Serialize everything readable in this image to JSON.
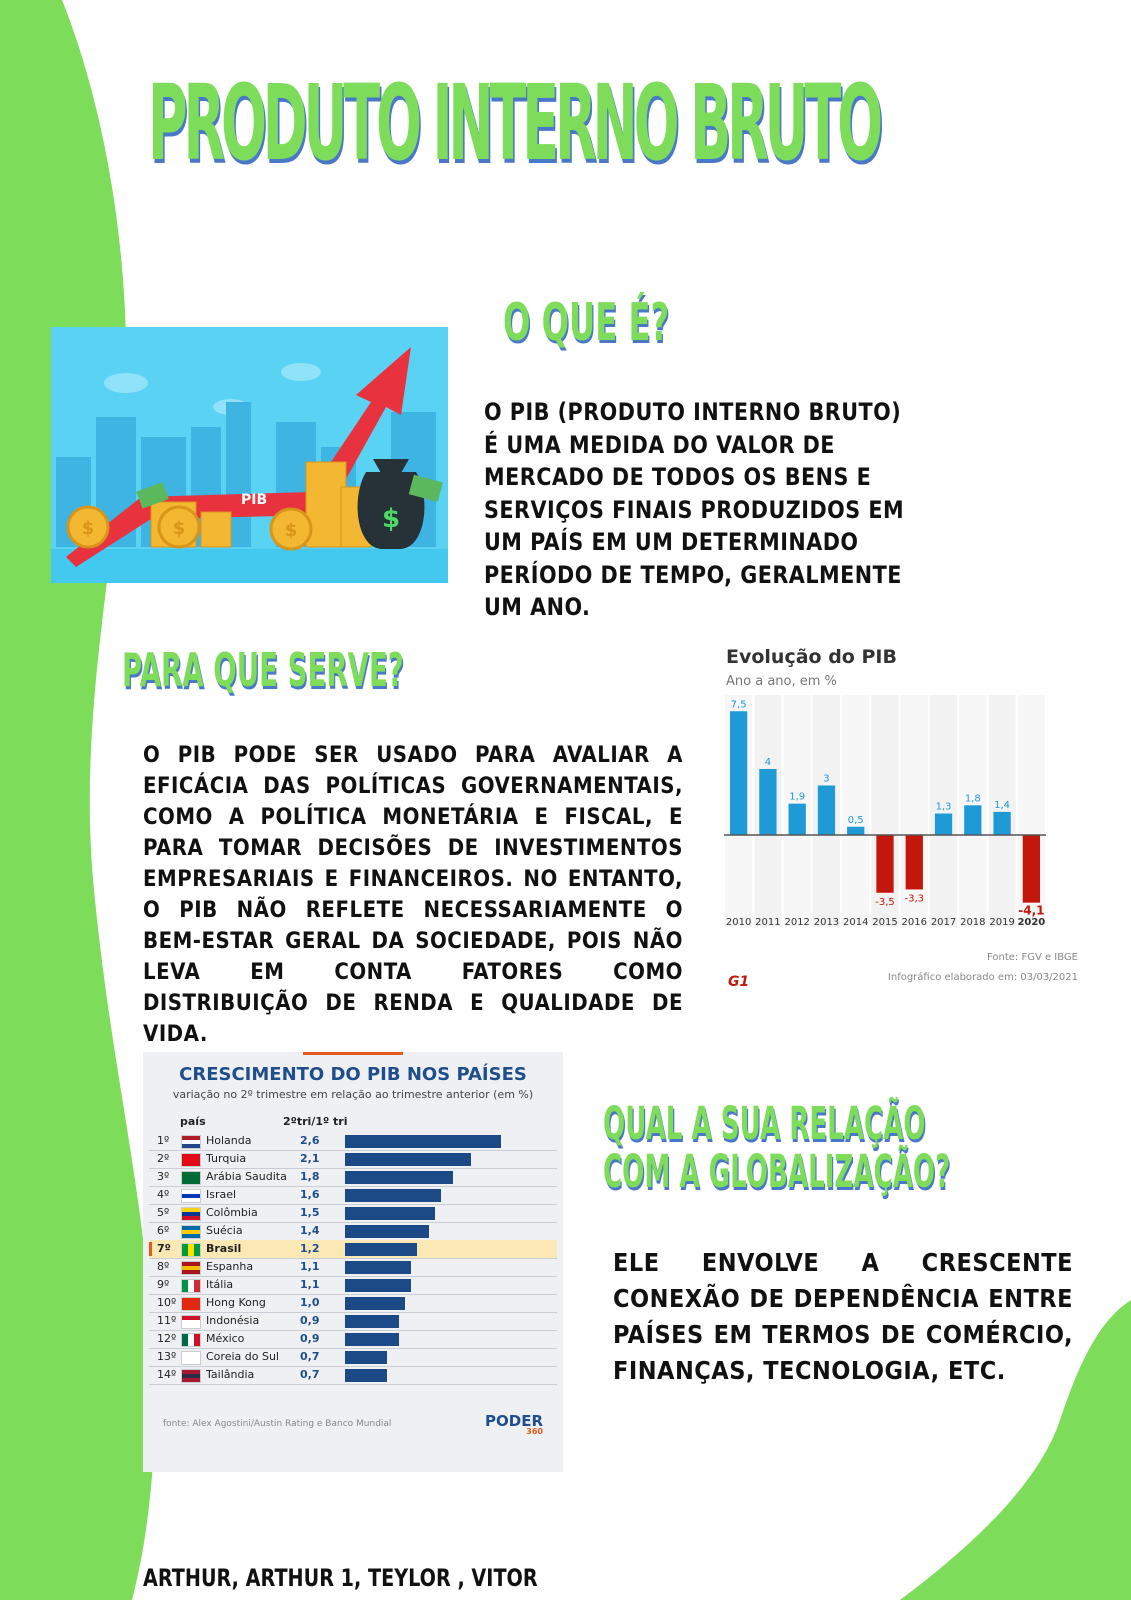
{
  "title": "PRODUTO INTERNO BRUTO",
  "sections": {
    "o_que_e": {
      "heading": "O QUE É?",
      "text": "O PIB (Produto Interno Bruto) é uma medida do valor de mercado de todos os bens e serviços finais produzidos em um país em um determinado período de tempo, geralmente um ano."
    },
    "para_que_serve": {
      "heading": "PARA QUE SERVE?",
      "text": "O PIB pode ser usado para avaliar a eficácia das políticas governamentais, como a política monetária e fiscal, e para tomar decisões de investimentos empresariais e financeiros. No entanto, o PIB não reflete necessariamente o bem-estar geral da sociedade, pois não leva em conta fatores como distribuição de renda e qualidade de vida."
    },
    "globalizacao": {
      "heading_line1": "QUAL A SUA RELAÇÃO",
      "heading_line2": "COM A GLOBALIZAÇÃO?",
      "text": "Ele envolve a crescente conexão de dependência entre países em termos de comércio, finanças, tecnologia, etc."
    }
  },
  "illustration": {
    "label": "PIB",
    "coin_symbol": "$"
  },
  "authors": "ARTHUR, ARTHUR 1, TEYLOR , VITOR",
  "colors": {
    "accent_green": "#7ddc59",
    "shadow_blue": "#4a78c9",
    "positive": "#1e9ad6",
    "negative": "#c4170c",
    "bar_blue": "#1c4a86",
    "highlight": "#fbe8b5"
  },
  "chart_data": [
    {
      "type": "bar",
      "title": "Evolução do PIB",
      "subtitle": "Ano a ano, em %",
      "categories": [
        "2010",
        "2011",
        "2012",
        "2013",
        "2014",
        "2015",
        "2016",
        "2017",
        "2018",
        "2019",
        "2020"
      ],
      "values": [
        7.5,
        4,
        1.9,
        3,
        0.5,
        -3.5,
        -3.3,
        1.3,
        1.8,
        1.4,
        -4.1
      ],
      "labels": [
        "7,5",
        "4",
        "1,9",
        "3",
        "0,5",
        "-3,5",
        "-3,3",
        "1,3",
        "1,8",
        "1,4",
        "-4,1"
      ],
      "ylim": [
        -5,
        8
      ],
      "source": "Fonte: FGV e IBGE",
      "note": "Infográfico elaborado em: 03/03/2021",
      "logo": "G1"
    },
    {
      "type": "bar",
      "orientation": "horizontal",
      "title": "CRESCIMENTO DO PIB NOS PAÍSES",
      "subtitle": "variação no 2º trimestre em relação ao trimestre anterior (em %)",
      "column_headers": [
        "país",
        "2ºtri/1º tri"
      ],
      "rows": [
        {
          "rank": "1º",
          "country": "Holanda",
          "value": 2.6,
          "label": "2,6",
          "flag": "nl"
        },
        {
          "rank": "2º",
          "country": "Turquia",
          "value": 2.1,
          "label": "2,1",
          "flag": "tr"
        },
        {
          "rank": "3º",
          "country": "Arábia Saudita",
          "value": 1.8,
          "label": "1,8",
          "flag": "sa"
        },
        {
          "rank": "4º",
          "country": "Israel",
          "value": 1.6,
          "label": "1,6",
          "flag": "il"
        },
        {
          "rank": "5º",
          "country": "Colômbia",
          "value": 1.5,
          "label": "1,5",
          "flag": "co"
        },
        {
          "rank": "6º",
          "country": "Suécia",
          "value": 1.4,
          "label": "1,4",
          "flag": "se"
        },
        {
          "rank": "7º",
          "country": "Brasil",
          "value": 1.2,
          "label": "1,2",
          "flag": "br",
          "highlight": true
        },
        {
          "rank": "8º",
          "country": "Espanha",
          "value": 1.1,
          "label": "1,1",
          "flag": "es"
        },
        {
          "rank": "9º",
          "country": "Itália",
          "value": 1.1,
          "label": "1,1",
          "flag": "it"
        },
        {
          "rank": "10º",
          "country": "Hong Kong",
          "value": 1.0,
          "label": "1,0",
          "flag": "hk"
        },
        {
          "rank": "11º",
          "country": "Indonésia",
          "value": 0.9,
          "label": "0,9",
          "flag": "id"
        },
        {
          "rank": "12º",
          "country": "México",
          "value": 0.9,
          "label": "0,9",
          "flag": "mx"
        },
        {
          "rank": "13º",
          "country": "Coreia do Sul",
          "value": 0.7,
          "label": "0,7",
          "flag": "kr"
        },
        {
          "rank": "14º",
          "country": "Tailândia",
          "value": 0.7,
          "label": "0,7",
          "flag": "th"
        }
      ],
      "source": "fonte: Alex Agostini/Austin Rating e Banco Mundial",
      "logo": "PODER",
      "logo_sub": "360"
    }
  ]
}
